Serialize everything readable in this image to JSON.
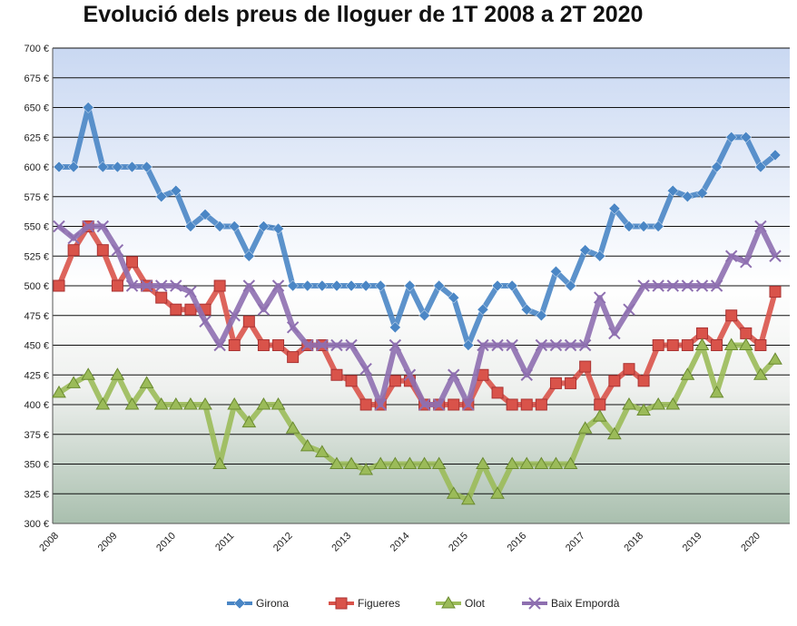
{
  "chart_data": {
    "type": "line",
    "title": "Evolució dels preus de lloguer de 1T 2008 a 2T 2020",
    "categories": [
      "2008",
      null,
      null,
      null,
      "2009",
      null,
      null,
      null,
      "2010",
      null,
      null,
      null,
      "2011",
      null,
      null,
      null,
      "2012",
      null,
      null,
      null,
      "2013",
      null,
      null,
      null,
      "2014",
      null,
      null,
      null,
      "2015",
      null,
      null,
      null,
      "2016",
      null,
      null,
      null,
      "2017",
      null,
      null,
      null,
      "2018",
      null,
      null,
      null,
      "2019",
      null,
      null,
      null,
      "2020",
      null
    ],
    "series": [
      {
        "name": "Girona",
        "color": "#4a86c5",
        "marker": "diamond",
        "values": [
          600,
          600,
          650,
          600,
          600,
          600,
          600,
          575,
          580,
          550,
          560,
          550,
          550,
          525,
          550,
          548,
          500,
          500,
          500,
          500,
          500,
          500,
          500,
          465,
          500,
          475,
          500,
          490,
          450,
          480,
          500,
          500,
          480,
          475,
          512,
          500,
          530,
          525,
          565,
          550,
          550,
          550,
          580,
          575,
          578,
          600,
          625,
          625,
          600,
          610
        ]
      },
      {
        "name": "Figueres",
        "color": "#d9534a",
        "marker": "square",
        "values": [
          500,
          530,
          550,
          530,
          500,
          520,
          500,
          490,
          480,
          480,
          480,
          500,
          450,
          470,
          450,
          450,
          440,
          450,
          450,
          425,
          420,
          400,
          400,
          420,
          420,
          400,
          400,
          400,
          400,
          425,
          410,
          400,
          400,
          400,
          418,
          418,
          432,
          400,
          420,
          430,
          420,
          450,
          450,
          450,
          460,
          450,
          475,
          460,
          450,
          495
        ]
      },
      {
        "name": "Olot",
        "color": "#9bbb59",
        "marker": "triangle",
        "values": [
          410,
          418,
          425,
          400,
          425,
          400,
          418,
          400,
          400,
          400,
          400,
          350,
          400,
          385,
          400,
          400,
          380,
          365,
          360,
          350,
          350,
          345,
          350,
          350,
          350,
          350,
          350,
          325,
          320,
          350,
          325,
          350,
          350,
          350,
          350,
          350,
          380,
          390,
          375,
          400,
          395,
          400,
          400,
          425,
          450,
          410,
          450,
          450,
          425,
          438
        ]
      },
      {
        "name": "Baix Empordà",
        "color": "#8e6fb0",
        "marker": "x",
        "values": [
          550,
          540,
          550,
          550,
          530,
          500,
          500,
          500,
          500,
          495,
          470,
          450,
          475,
          500,
          480,
          500,
          465,
          450,
          450,
          450,
          450,
          430,
          400,
          450,
          425,
          400,
          400,
          425,
          400,
          450,
          450,
          450,
          425,
          450,
          450,
          450,
          450,
          490,
          460,
          480,
          500,
          500,
          500,
          500,
          500,
          500,
          525,
          520,
          550,
          525
        ]
      }
    ],
    "ylim": [
      300,
      700
    ],
    "yticks": [
      {
        "value": 300,
        "label": "300 €"
      },
      {
        "value": 325,
        "label": "325 €"
      },
      {
        "value": 350,
        "label": "350 €"
      },
      {
        "value": 375,
        "label": "375 €"
      },
      {
        "value": 400,
        "label": "400 €"
      },
      {
        "value": 425,
        "label": "425 €"
      },
      {
        "value": 450,
        "label": "450 €"
      },
      {
        "value": 475,
        "label": "475 €"
      },
      {
        "value": 500,
        "label": "500 €"
      },
      {
        "value": 525,
        "label": "525 €"
      },
      {
        "value": 550,
        "label": "550 €"
      },
      {
        "value": 575,
        "label": "575 €"
      },
      {
        "value": 600,
        "label": "600 €"
      },
      {
        "value": 625,
        "label": "625 €"
      },
      {
        "value": 650,
        "label": "650 €"
      },
      {
        "value": 675,
        "label": "675 €"
      },
      {
        "value": 700,
        "label": "700 €"
      }
    ],
    "grid": true,
    "legend": "bottom"
  }
}
